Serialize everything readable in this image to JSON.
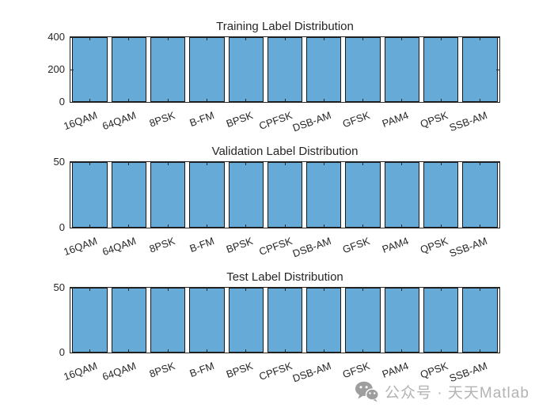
{
  "figure": {
    "background": "#ffffff"
  },
  "colors": {
    "bar_fill": "#66AAD7",
    "bar_edge": "#1a1a1a",
    "axis": "#262626",
    "label_text": "#262626",
    "watermark_text": "#b3b3b3",
    "watermark_icon": "#9e9e9e"
  },
  "chart_data": [
    {
      "type": "bar",
      "title": "Training Label Distribution",
      "categories": [
        "16QAM",
        "64QAM",
        "8PSK",
        "B-FM",
        "BPSK",
        "CPFSK",
        "DSB-AM",
        "GFSK",
        "PAM4",
        "QPSK",
        "SSB-AM"
      ],
      "values": [
        400,
        400,
        400,
        400,
        400,
        400,
        400,
        400,
        400,
        400,
        400
      ],
      "xlabel": "",
      "ylabel": "",
      "ylim": [
        0,
        400
      ],
      "yticks": [
        0,
        200,
        400
      ],
      "yticklabels": [
        "0",
        "200",
        "400"
      ],
      "grid": false,
      "legend": null
    },
    {
      "type": "bar",
      "title": "Validation Label Distribution",
      "categories": [
        "16QAM",
        "64QAM",
        "8PSK",
        "B-FM",
        "BPSK",
        "CPFSK",
        "DSB-AM",
        "GFSK",
        "PAM4",
        "QPSK",
        "SSB-AM"
      ],
      "values": [
        50,
        50,
        50,
        50,
        50,
        50,
        50,
        50,
        50,
        50,
        50
      ],
      "xlabel": "",
      "ylabel": "",
      "ylim": [
        0,
        50
      ],
      "yticks": [
        0,
        50
      ],
      "yticklabels": [
        "0",
        "50"
      ],
      "grid": false,
      "legend": null
    },
    {
      "type": "bar",
      "title": "Test Label Distribution",
      "categories": [
        "16QAM",
        "64QAM",
        "8PSK",
        "B-FM",
        "BPSK",
        "CPFSK",
        "DSB-AM",
        "GFSK",
        "PAM4",
        "QPSK",
        "SSB-AM"
      ],
      "values": [
        50,
        50,
        50,
        50,
        50,
        50,
        50,
        50,
        50,
        50,
        50
      ],
      "xlabel": "",
      "ylabel": "",
      "ylim": [
        0,
        50
      ],
      "yticks": [
        0,
        50
      ],
      "yticklabels": [
        "0",
        "50"
      ],
      "grid": false,
      "legend": null
    }
  ],
  "watermark": {
    "text": "公众号 · 天天Matlab",
    "icon": "wechat-icon"
  }
}
